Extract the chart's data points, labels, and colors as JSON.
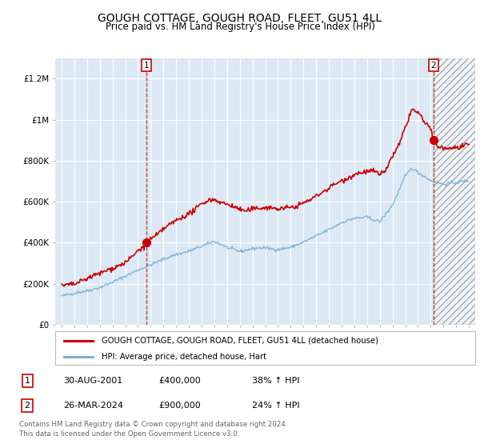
{
  "title": "GOUGH COTTAGE, GOUGH ROAD, FLEET, GU51 4LL",
  "subtitle": "Price paid vs. HM Land Registry's House Price Index (HPI)",
  "title_fontsize": 10,
  "subtitle_fontsize": 8.5,
  "background_color": "#ffffff",
  "plot_bg_color": "#dce9f5",
  "grid_color": "#ffffff",
  "red_color": "#cc0000",
  "blue_color": "#7ab0d4",
  "sale1_x": 2001.66,
  "sale1_y": 400000,
  "sale2_x": 2024.23,
  "sale2_y": 900000,
  "ylim_min": 0,
  "ylim_max": 1300000,
  "xlim_min": 1994.5,
  "xlim_max": 2027.5,
  "legend_label1": "GOUGH COTTAGE, GOUGH ROAD, FLEET, GU51 4LL (detached house)",
  "legend_label2": "HPI: Average price, detached house, Hart",
  "table_row1": [
    "1",
    "30-AUG-2001",
    "£400,000",
    "38% ↑ HPI"
  ],
  "table_row2": [
    "2",
    "26-MAR-2024",
    "£900,000",
    "24% ↑ HPI"
  ],
  "footer": "Contains HM Land Registry data © Crown copyright and database right 2024.\nThis data is licensed under the Open Government Licence v3.0.",
  "yticks": [
    0,
    200000,
    400000,
    600000,
    800000,
    1000000,
    1200000
  ],
  "ytick_labels": [
    "£0",
    "£200K",
    "£400K",
    "£600K",
    "£800K",
    "£1M",
    "£1.2M"
  ],
  "xticks": [
    1995,
    1996,
    1997,
    1998,
    1999,
    2000,
    2001,
    2002,
    2003,
    2004,
    2005,
    2006,
    2007,
    2008,
    2009,
    2010,
    2011,
    2012,
    2013,
    2014,
    2015,
    2016,
    2017,
    2018,
    2019,
    2020,
    2021,
    2022,
    2023,
    2024,
    2025,
    2026,
    2027
  ],
  "hatch_start": 2024.23,
  "hatch_end": 2027.5
}
